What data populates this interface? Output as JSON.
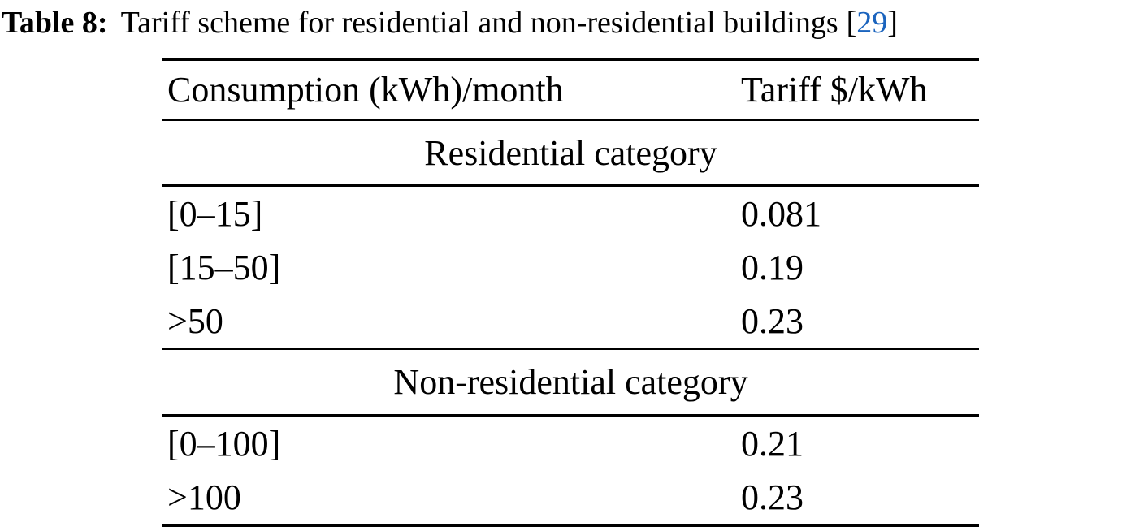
{
  "title": {
    "label": "Table 8:",
    "text": "Tariff scheme for residential and non-residential buildings",
    "citation_open": "[",
    "citation": "29",
    "citation_close": "]"
  },
  "table": {
    "columns": [
      "Consumption (kWh)/month",
      "Tariff $/kWh"
    ],
    "sections": [
      {
        "header": "Residential category",
        "rows": [
          {
            "consumption": "[0–15]",
            "tariff": "0.081"
          },
          {
            "consumption": "[15–50]",
            "tariff": "0.19"
          },
          {
            "consumption": ">50",
            "tariff": "0.23"
          }
        ]
      },
      {
        "header": "Non-residential category",
        "rows": [
          {
            "consumption": "[0–100]",
            "tariff": "0.21"
          },
          {
            "consumption": ">100",
            "tariff": "0.23"
          }
        ]
      }
    ]
  },
  "colors": {
    "text": "#000000",
    "background": "#ffffff",
    "citation_blue": "#1b64be",
    "rule": "#000000"
  }
}
